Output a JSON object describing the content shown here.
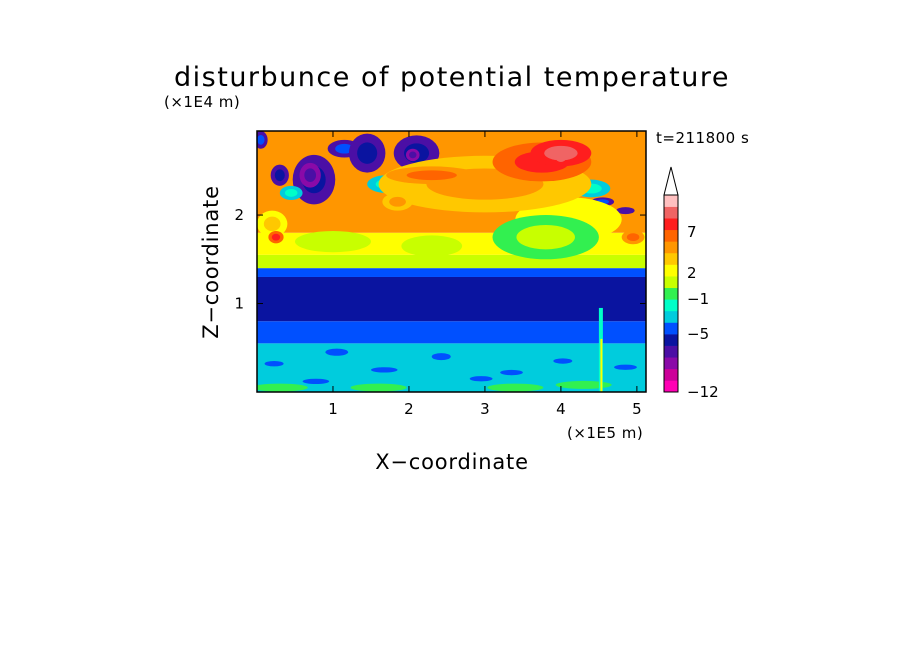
{
  "chart_data": {
    "type": "heatmap",
    "title": "disturbunce of potential temperature",
    "xlabel": "X−coordinate",
    "ylabel": "Z−coordinate",
    "x_unit": "(×1E5 m)",
    "y_unit": "(×1E4 m)",
    "time_label": "t=211800 s",
    "xlim": [
      0,
      5.12
    ],
    "ylim": [
      0,
      2.95
    ],
    "x_ticks": [
      1,
      2,
      3,
      4,
      5
    ],
    "x_tick_labels": [
      "1",
      "2",
      "3",
      "4",
      "5"
    ],
    "y_ticks": [
      1,
      2
    ],
    "y_tick_labels": [
      "1",
      "2"
    ],
    "colorbar": {
      "labeled_levels": [
        7,
        2,
        -1,
        -5,
        -12
      ],
      "labels": [
        "7",
        "2",
        "−1",
        "−5",
        "−12"
      ],
      "colors": [
        "#ff00b4",
        "#cc0099",
        "#8a0aa8",
        "#4b0fa5",
        "#0a14a0",
        "#0050ff",
        "#00ccdd",
        "#00ffc8",
        "#32f050",
        "#c8ff00",
        "#ffff00",
        "#ffc800",
        "#ff9600",
        "#ff6400",
        "#ff1e1e",
        "#f06464",
        "#ffc0c0"
      ],
      "extend_top": true
    },
    "bands": [
      {
        "z": [
          0.0,
          0.55
        ],
        "level": "-1 to -2",
        "color": "#00ccdd"
      },
      {
        "z": [
          0.55,
          0.8
        ],
        "level": "-2 to -4",
        "color": "#0050ff"
      },
      {
        "z": [
          0.8,
          1.3
        ],
        "level": "-4 to -5",
        "color": "#0a14a0"
      },
      {
        "z": [
          1.3,
          1.4
        ],
        "level": "-1 to -3",
        "color": "#0050ff"
      },
      {
        "z": [
          1.4,
          1.55
        ],
        "level": "0 to 1",
        "color": "#c8ff00"
      },
      {
        "z": [
          1.55,
          1.8
        ],
        "level": "1 to 2",
        "color": "#ffff00"
      },
      {
        "z": [
          1.8,
          2.95
        ],
        "level": "2 to 7",
        "color": "#ff9600"
      }
    ],
    "features": [
      {
        "name": "maximum",
        "x": 4.0,
        "z": 2.65,
        "value": "~8"
      },
      {
        "name": "minimum",
        "x": 0.7,
        "z": 2.45,
        "value": "~-6"
      },
      {
        "name": "minimum",
        "x": 2.05,
        "z": 2.7,
        "value": "~-6"
      }
    ]
  }
}
